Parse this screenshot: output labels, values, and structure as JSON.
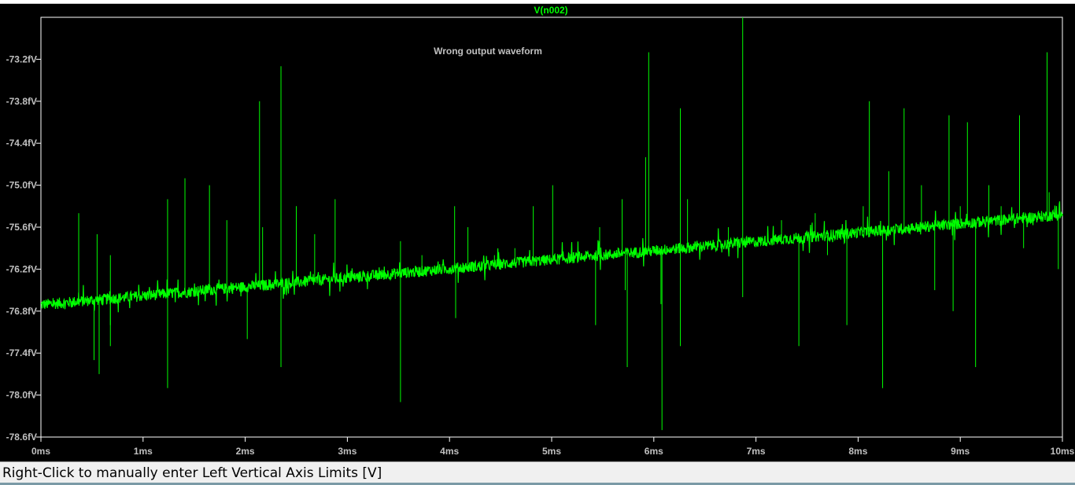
{
  "chart_data": {
    "type": "line",
    "title": "V(n002)",
    "annotation": "Wrong output waveform",
    "xlim": [
      0,
      10
    ],
    "ylim": [
      -78.6,
      -72.6
    ],
    "x_ticks": [
      "0ms",
      "1ms",
      "2ms",
      "3ms",
      "4ms",
      "5ms",
      "6ms",
      "7ms",
      "8ms",
      "9ms",
      "10ms"
    ],
    "x_tick_values": [
      0,
      1,
      2,
      3,
      4,
      5,
      6,
      7,
      8,
      9,
      10
    ],
    "y_ticks": [
      "-73.2fV",
      "-73.8fV",
      "-74.4fV",
      "-75.0fV",
      "-75.6fV",
      "-76.2fV",
      "-76.8fV",
      "-77.4fV",
      "-78.0fV",
      "-78.6fV"
    ],
    "y_tick_values": [
      -73.2,
      -73.8,
      -74.4,
      -75.0,
      -75.6,
      -76.2,
      -76.8,
      -77.4,
      -78.0,
      -78.6
    ],
    "grid": false,
    "series": [
      {
        "name": "V(n002)",
        "color": "#00ff00",
        "trend_x": [
          0,
          10
        ],
        "trend_y": [
          -76.71,
          -75.42
        ],
        "noise_band": 0.08,
        "spikes": [
          {
            "x": 0.37,
            "y": -75.4
          },
          {
            "x": 0.52,
            "y": -77.5
          },
          {
            "x": 0.55,
            "y": -75.7
          },
          {
            "x": 0.57,
            "y": -77.7
          },
          {
            "x": 0.68,
            "y": -76.0
          },
          {
            "x": 0.68,
            "y": -77.0
          },
          {
            "x": 0.68,
            "y": -77.3
          },
          {
            "x": 1.24,
            "y": -75.2
          },
          {
            "x": 1.24,
            "y": -77.9
          },
          {
            "x": 1.41,
            "y": -74.9
          },
          {
            "x": 1.65,
            "y": -75.0
          },
          {
            "x": 1.82,
            "y": -75.5
          },
          {
            "x": 2.02,
            "y": -77.2
          },
          {
            "x": 2.14,
            "y": -73.8
          },
          {
            "x": 2.17,
            "y": -75.6
          },
          {
            "x": 2.35,
            "y": -73.3
          },
          {
            "x": 2.35,
            "y": -77.6
          },
          {
            "x": 2.5,
            "y": -75.3
          },
          {
            "x": 2.68,
            "y": -75.7
          },
          {
            "x": 2.88,
            "y": -75.2
          },
          {
            "x": 3.52,
            "y": -78.1
          },
          {
            "x": 3.52,
            "y": -75.8
          },
          {
            "x": 3.73,
            "y": -76.0
          },
          {
            "x": 4.05,
            "y": -75.3
          },
          {
            "x": 4.06,
            "y": -76.9
          },
          {
            "x": 4.18,
            "y": -75.6
          },
          {
            "x": 4.44,
            "y": -76.0
          },
          {
            "x": 4.64,
            "y": -75.9
          },
          {
            "x": 4.82,
            "y": -75.3
          },
          {
            "x": 5.01,
            "y": -75.0
          },
          {
            "x": 5.43,
            "y": -77.0
          },
          {
            "x": 5.47,
            "y": -75.6
          },
          {
            "x": 5.69,
            "y": -75.2
          },
          {
            "x": 5.72,
            "y": -76.5
          },
          {
            "x": 5.74,
            "y": -77.6
          },
          {
            "x": 5.92,
            "y": -74.6
          },
          {
            "x": 5.95,
            "y": -73.1
          },
          {
            "x": 6.07,
            "y": -76.7
          },
          {
            "x": 6.08,
            "y": -78.5
          },
          {
            "x": 6.26,
            "y": -73.9
          },
          {
            "x": 6.26,
            "y": -77.3
          },
          {
            "x": 6.33,
            "y": -75.2
          },
          {
            "x": 6.73,
            "y": -75.6
          },
          {
            "x": 6.87,
            "y": -72.6
          },
          {
            "x": 6.87,
            "y": -76.6
          },
          {
            "x": 7.25,
            "y": -75.5
          },
          {
            "x": 7.42,
            "y": -77.3
          },
          {
            "x": 7.58,
            "y": -75.4
          },
          {
            "x": 7.7,
            "y": -76.0
          },
          {
            "x": 7.89,
            "y": -77.0
          },
          {
            "x": 8.05,
            "y": -75.3
          },
          {
            "x": 8.11,
            "y": -73.8
          },
          {
            "x": 8.24,
            "y": -77.9
          },
          {
            "x": 8.3,
            "y": -74.8
          },
          {
            "x": 8.45,
            "y": -73.9
          },
          {
            "x": 8.62,
            "y": -75.0
          },
          {
            "x": 8.75,
            "y": -76.5
          },
          {
            "x": 8.89,
            "y": -74.0
          },
          {
            "x": 8.93,
            "y": -76.8
          },
          {
            "x": 9.0,
            "y": -75.3
          },
          {
            "x": 9.07,
            "y": -74.1
          },
          {
            "x": 9.15,
            "y": -77.6
          },
          {
            "x": 9.28,
            "y": -75.0
          },
          {
            "x": 9.4,
            "y": -75.3
          },
          {
            "x": 9.58,
            "y": -74.0
          },
          {
            "x": 9.62,
            "y": -75.9
          },
          {
            "x": 9.85,
            "y": -73.1
          },
          {
            "x": 9.87,
            "y": -75.1
          },
          {
            "x": 9.96,
            "y": -76.2
          }
        ]
      }
    ]
  },
  "status": {
    "text": "Right-Click to manually enter Left Vertical Axis Limits [V]"
  }
}
